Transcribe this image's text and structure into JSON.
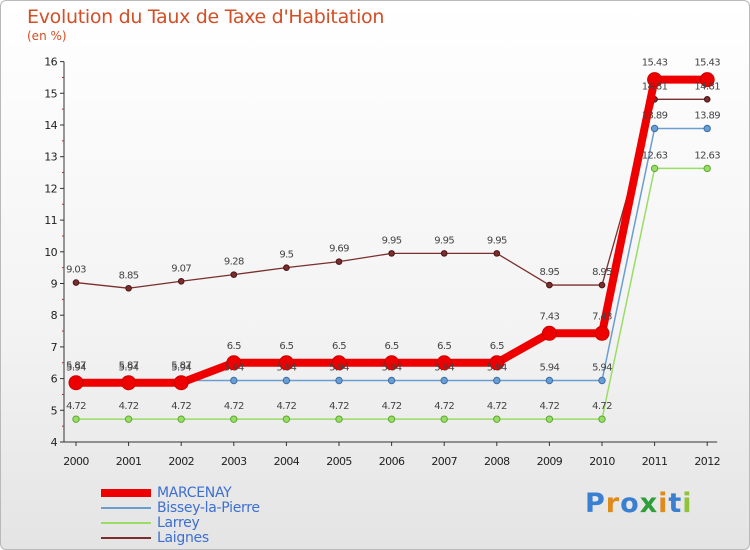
{
  "chart_data": {
    "type": "line",
    "title": "Evolution du Taux de Taxe d'Habitation",
    "ylabel": "(en %)",
    "xlabel": "",
    "categories": [
      "2000",
      "2001",
      "2002",
      "2003",
      "2004",
      "2005",
      "2006",
      "2007",
      "2008",
      "2009",
      "2010",
      "2011",
      "2012"
    ],
    "ylim": [
      4,
      16
    ],
    "yticks": [
      "4",
      "5",
      "6",
      "7",
      "8",
      "9",
      "10",
      "11",
      "12",
      "13",
      "14",
      "15",
      "16"
    ],
    "grid": false,
    "legend_position": "bottom-left",
    "series": [
      {
        "name": "MARCENAY",
        "color": "#ee0000",
        "values": [
          5.87,
          5.87,
          5.87,
          6.5,
          6.5,
          6.5,
          6.5,
          6.5,
          6.5,
          7.43,
          7.43,
          15.43,
          15.43
        ],
        "labels": [
          "5.87",
          "5.87",
          "5.87",
          "6.5",
          "6.5",
          "6.5",
          "6.5",
          "6.5",
          "6.5",
          "7.43",
          "7.43",
          "15.43",
          "15.43"
        ]
      },
      {
        "name": "Bissey-la-Pierre",
        "color": "#6a9ed0",
        "values": [
          5.94,
          5.94,
          5.94,
          5.94,
          5.94,
          5.94,
          5.94,
          5.94,
          5.94,
          5.94,
          5.94,
          13.89,
          13.89
        ],
        "labels": [
          "5.94",
          "5.94",
          "5.94",
          "5.94",
          "5.94",
          "5.94",
          "5.94",
          "5.94",
          "5.94",
          "5.94",
          "5.94",
          "13.89",
          "13.89"
        ]
      },
      {
        "name": "Larrey",
        "color": "#99dd66",
        "values": [
          4.72,
          4.72,
          4.72,
          4.72,
          4.72,
          4.72,
          4.72,
          4.72,
          4.72,
          4.72,
          4.72,
          12.63,
          12.63
        ],
        "labels": [
          "4.72",
          "4.72",
          "4.72",
          "4.72",
          "4.72",
          "4.72",
          "4.72",
          "4.72",
          "4.72",
          "4.72",
          "4.72",
          "12.63",
          "12.63"
        ]
      },
      {
        "name": "Laignes",
        "color": "#7a2e2e",
        "values": [
          9.03,
          8.85,
          9.07,
          9.28,
          9.5,
          9.69,
          9.95,
          9.95,
          9.95,
          8.95,
          8.95,
          14.81,
          14.81
        ],
        "labels": [
          "9.03",
          "8.85",
          "9.07",
          "9.28",
          "9.5",
          "9.69",
          "9.95",
          "9.95",
          "9.95",
          "8.95",
          "8.95",
          "14.81",
          "14.81"
        ]
      }
    ]
  },
  "brand": {
    "letters": [
      "P",
      "r",
      "o",
      "x",
      "i",
      "t",
      "i"
    ],
    "colors": [
      "#3a7fd0",
      "#e08a1a",
      "#3a7fd0",
      "#2e9e3a",
      "#e08a1a",
      "#3a7fd0",
      "#8fc43a"
    ]
  }
}
